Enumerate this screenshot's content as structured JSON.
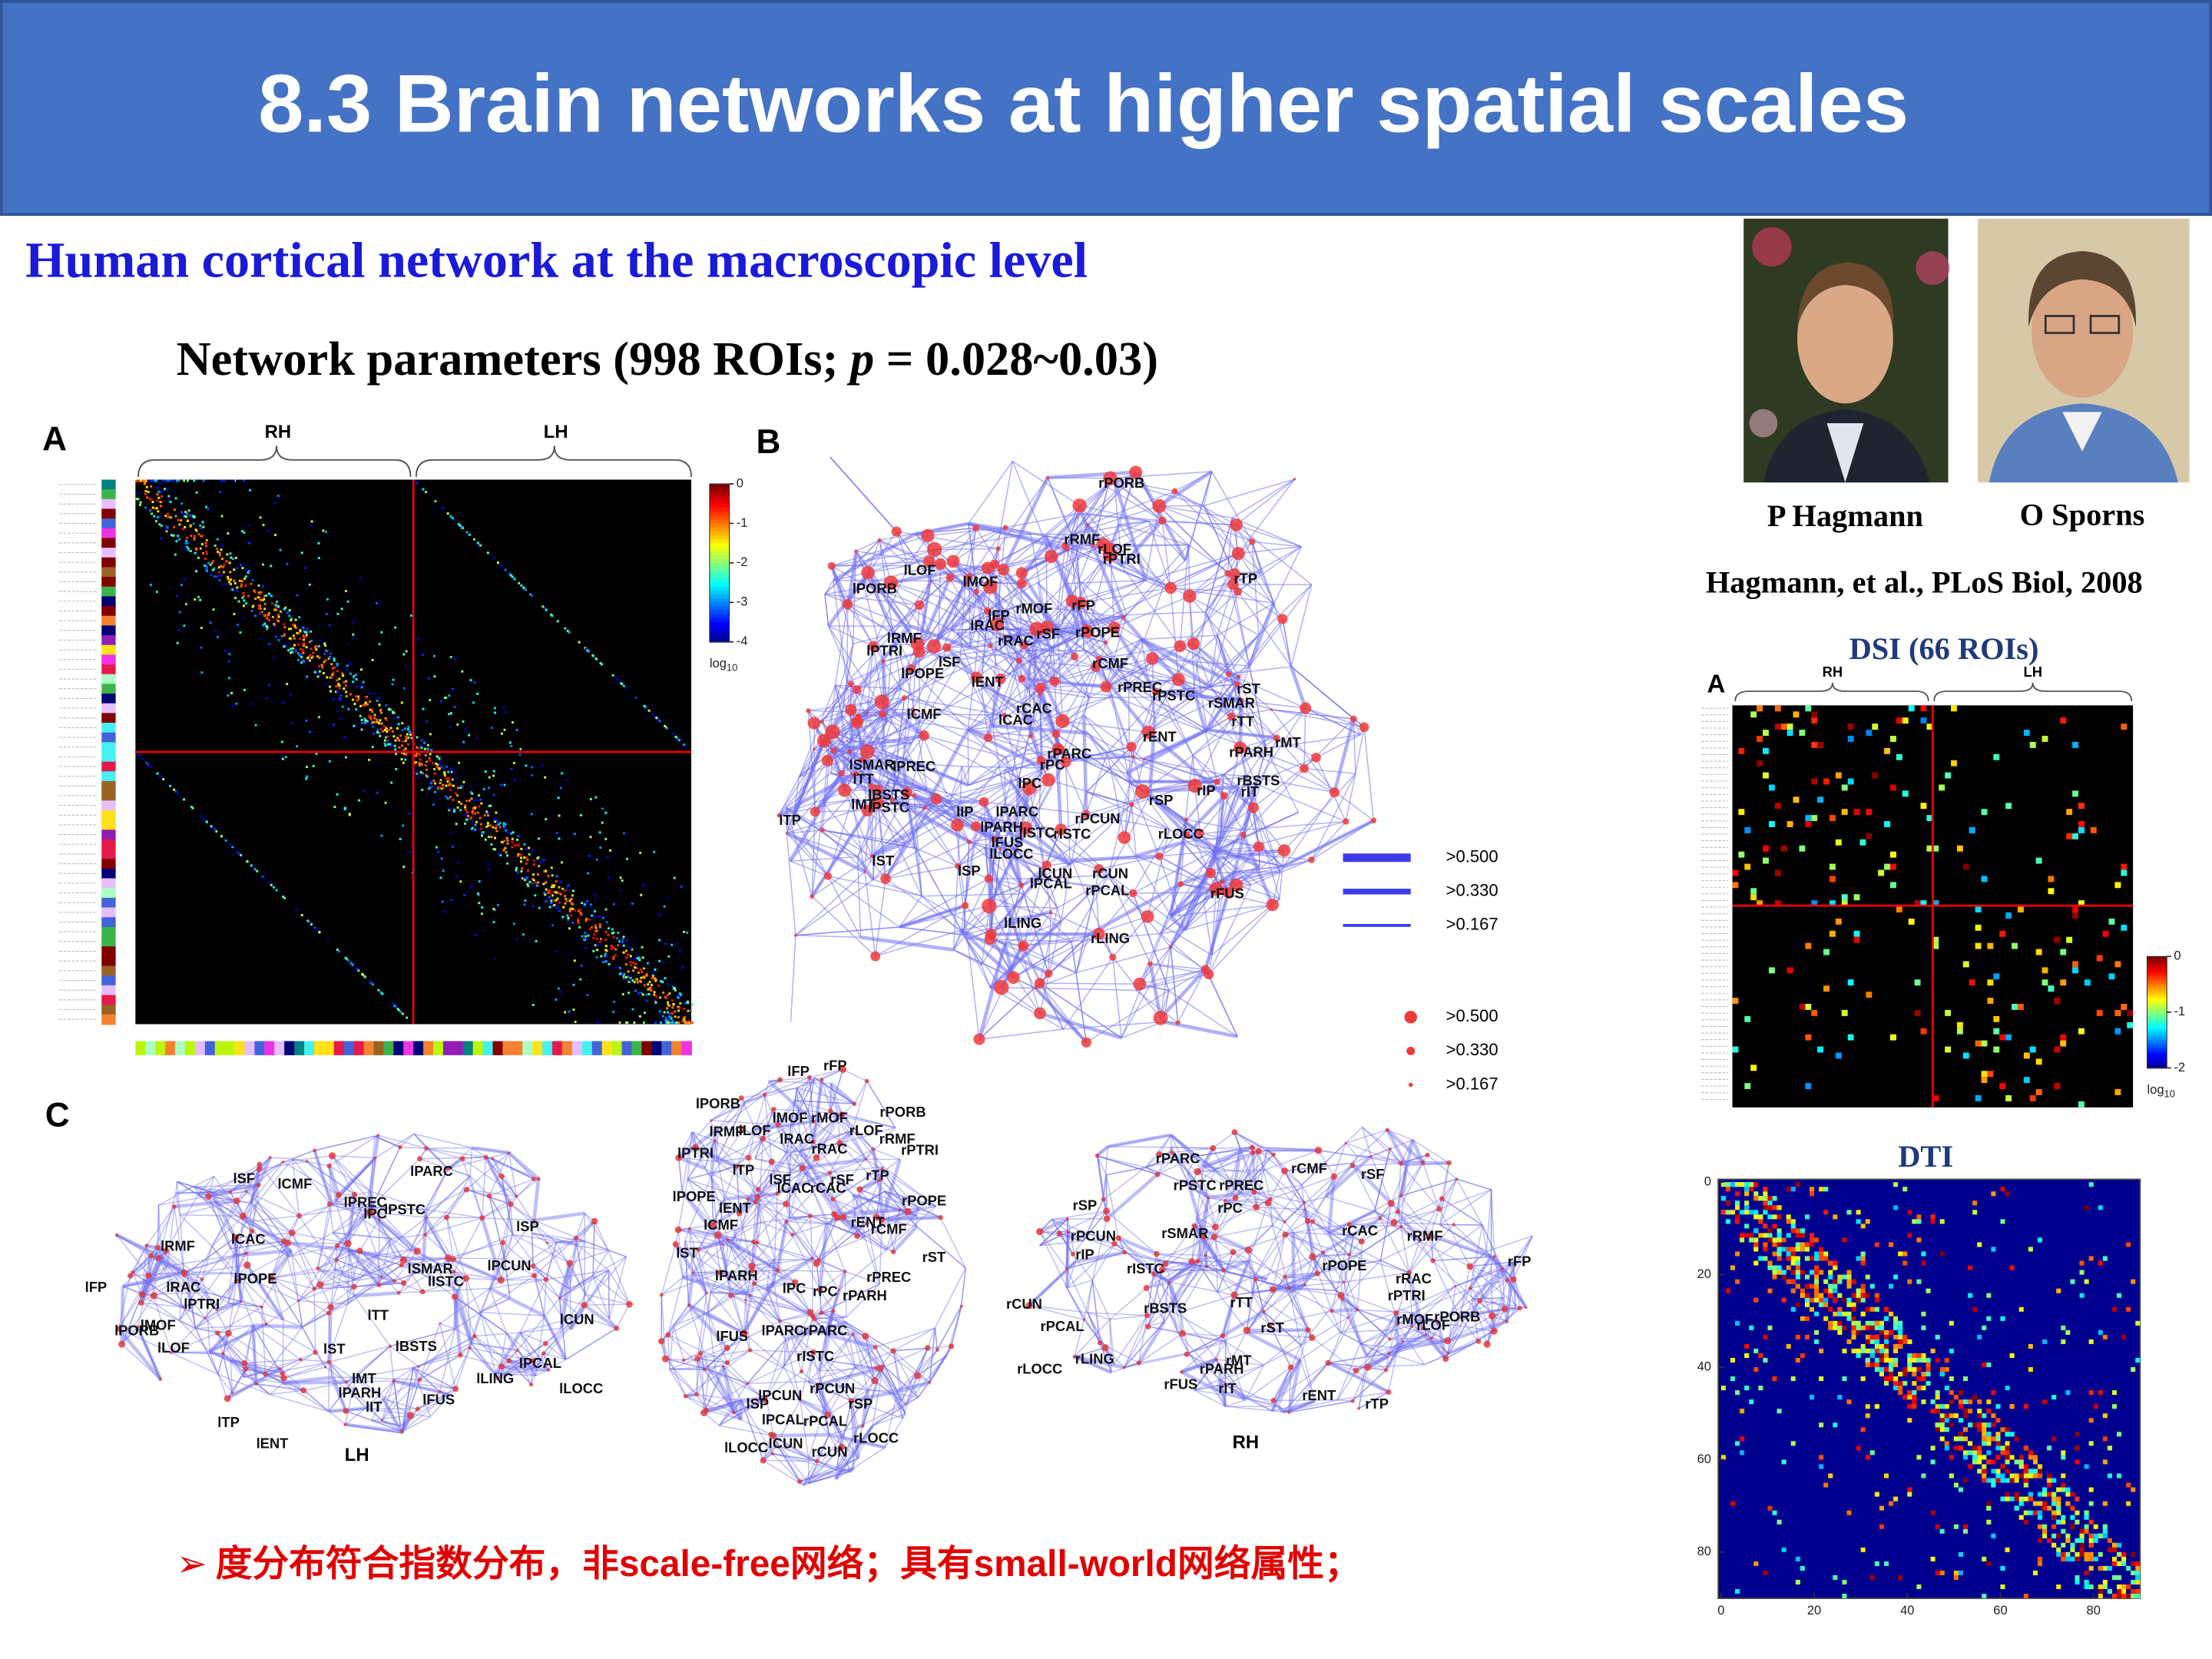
{
  "header": {
    "title": "8.3 Brain networks at higher spatial scales"
  },
  "heading": "Human cortical network at the macroscopic level",
  "subheading": {
    "before": "Network parameters (998 ROIs; ",
    "italic": "p",
    "after": " = 0.028~0.03)"
  },
  "photos": {
    "captions": [
      "P Hagmann",
      "O Sporns"
    ],
    "citation": "Hagmann, et al., PLoS Biol, 2008"
  },
  "figure": {
    "panel_a": {
      "letter": "A",
      "hemispheres": [
        "RH",
        "LH"
      ],
      "colorbar": {
        "lim": [
          -4,
          0
        ],
        "ticks": [
          0,
          -1,
          -2,
          -3,
          -4
        ],
        "unit": "log",
        "unit_sub": "10"
      }
    },
    "panel_b": {
      "letter": "B",
      "labels": [
        "rPORB",
        "rRMF",
        "rLOF",
        "rPTRI",
        "lLOF",
        "lMOF",
        "lPORB",
        "rTP",
        "lFP",
        "rMOF",
        "rFP",
        "lRAC",
        "rSF",
        "rRAC",
        "rPOPE",
        "lRMF",
        "lPTRI",
        "lSF",
        "lPOPE",
        "lENT",
        "rCMF",
        "rPREC",
        "rPSTC",
        "rST",
        "rSMAR",
        "rTT",
        "rCAC",
        "lCAC",
        "lCMF",
        "rENT",
        "rMT",
        "rPARH",
        "rPARC",
        "rPC",
        "lSMAR",
        "lPREC",
        "lTT",
        "lPC",
        "rBSTS",
        "rIT",
        "lBSTS",
        "lMT",
        "lPSTC",
        "rIP",
        "rSP",
        "lTP",
        "lIP",
        "lPARC",
        "rPCUN",
        "lPARH",
        "lISTC",
        "rISTC",
        "lFUS",
        "rLOCC",
        "lLOCC",
        "lST",
        "lSP",
        "lCUN",
        "rCUN",
        "lPCAL",
        "rPCAL",
        "rFUS",
        "lLING",
        "rLING"
      ],
      "edge_legend": [
        ">0.500",
        ">0.330",
        ">0.167"
      ],
      "node_legend": [
        ">0.500",
        ">0.330",
        ">0.167"
      ]
    },
    "panel_c": {
      "letter": "C",
      "left_labels": [
        "lSF",
        "lCMF",
        "lPARC",
        "lPREC",
        "lPC",
        "lPSTC",
        "lSP",
        "lCAC",
        "lRMF",
        "lSMAR",
        "lISTC",
        "lPCUN",
        "lRAC",
        "lPOPE",
        "lPTRI",
        "lFP",
        "lTT",
        "lCUN",
        "lPORB",
        "lMOF",
        "lBSTS",
        "lST",
        "lLOF",
        "lPCAL",
        "lMT",
        "lLING",
        "lPARH",
        "lFUS",
        "lIT",
        "lLOCC",
        "lTP",
        "lENT"
      ],
      "left_caption": "LH",
      "middle_labels": [
        "lFP",
        "rFP",
        "lPORB",
        "rPORB",
        "lMOF",
        "rMOF",
        "lRMF",
        "lLOF",
        "rLOF",
        "lRAC",
        "rRMF",
        "rRAC",
        "lPTRI",
        "rPTRI",
        "lTP",
        "lSF",
        "rSF",
        "rTP",
        "lCAC",
        "rCAC",
        "lPOPE",
        "rPOPE",
        "lENT",
        "lCMF",
        "rENT",
        "rCMF",
        "lST",
        "rST",
        "lPARH",
        "lPC",
        "rPC",
        "rPARH",
        "rPREC",
        "lFUS",
        "lPARC",
        "rPARC",
        "rISTC",
        "lPCUN",
        "rPCUN",
        "lSP",
        "rSP",
        "lPCAL",
        "rPCAL",
        "lLOCC",
        "lCUN",
        "rCUN",
        "rLOCC"
      ],
      "right_labels": [
        "rPARC",
        "rPSTC",
        "rPREC",
        "rCMF",
        "rSF",
        "rPC",
        "rSP",
        "rSMAR",
        "rCAC",
        "rRMF",
        "rPCUN",
        "rIP",
        "rISTC",
        "rFP",
        "rPOPE",
        "rRAC",
        "rPTRI",
        "rCUN",
        "rBSTS",
        "rTT",
        "rMOF",
        "rLOF",
        "rPORB",
        "rPCAL",
        "rST",
        "rLOCC",
        "rLING",
        "rMT",
        "rPARH",
        "rFUS",
        "rIT",
        "rENT",
        "rTP"
      ],
      "right_caption": "RH"
    }
  },
  "dsi": {
    "title": "DSI (66 ROIs)",
    "letter": "A",
    "hemispheres": [
      "RH",
      "LH"
    ],
    "colorbar": {
      "lim": [
        -2,
        0
      ],
      "ticks": [
        0,
        -1,
        -2
      ],
      "unit": "log",
      "unit_sub": "10"
    }
  },
  "dti": {
    "title": "DTI",
    "xlim": [
      0,
      90
    ],
    "xticks": [
      0,
      20,
      40,
      60,
      80
    ],
    "ylim": [
      0,
      90
    ],
    "yticks": [
      0,
      20,
      40,
      60,
      80
    ]
  },
  "footer": {
    "bullet": "➢",
    "text": "度分布符合指数分布，非scale-free网络；具有small-world网络属性；"
  }
}
